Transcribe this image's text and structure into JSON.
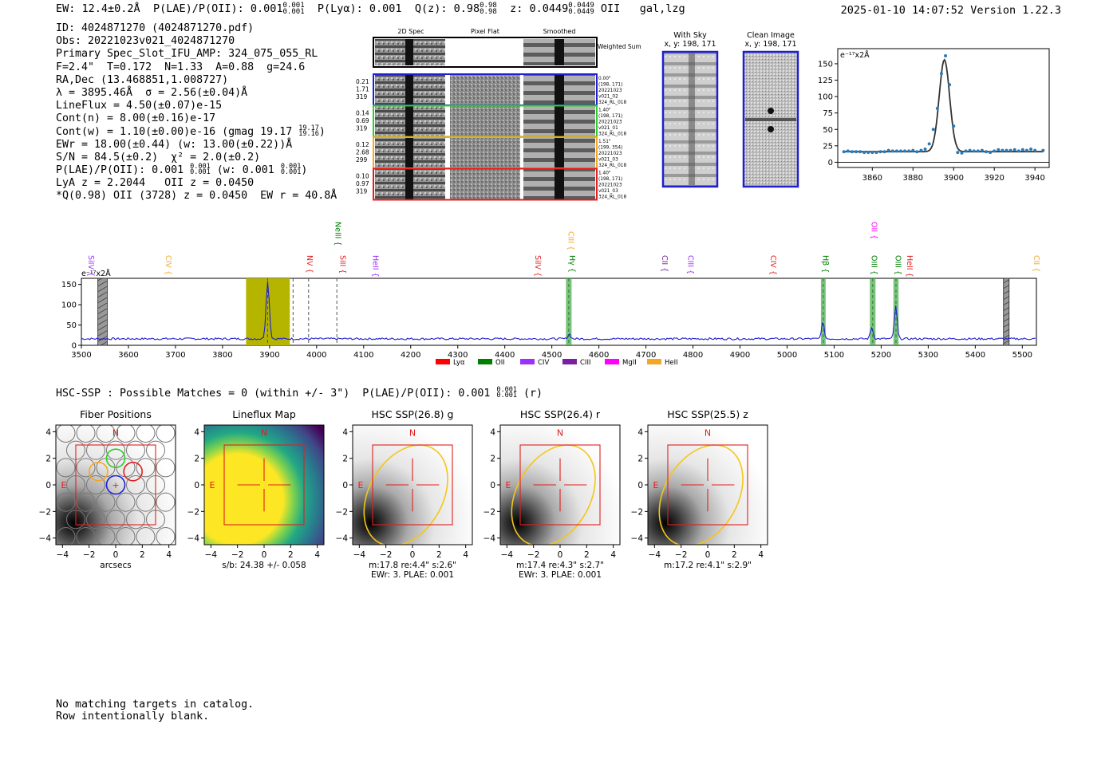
{
  "header": {
    "ew": "EW: 12.4±0.2Å",
    "plae_label": "P(LAE)/P(OII):",
    "plae_value": "0.001",
    "plae_hi": "0.001",
    "plae_lo": "0.001",
    "plya_label": "P(Lyα):",
    "plya_value": "0.001",
    "qz_label": "Q(z):",
    "qz_value": "0.98",
    "qz_hi": "0.98",
    "qz_lo": "0.98",
    "z_label": "z:",
    "z_value": "0.0449",
    "z_hi": "0.0449",
    "z_lo": "0.0449",
    "line_type": "OII",
    "classification": "gal,lzg",
    "datetime": "2025-01-10 14:07:52",
    "version": "Version 1.22.3"
  },
  "info": {
    "id": "ID: 4024871270 (4024871270.pdf)",
    "obs": "Obs: 20221023v021_4024871270",
    "primary": "Primary Spec_Slot_IFU_AMP: 324_075_055_RL",
    "fwhm": "F=2.4\"  T=0.172  N=1.33  A=0.88  g=24.6",
    "radec": "RA,Dec (13.468851,1.008727)",
    "lambda": "λ = 3895.46Å  σ = 2.56(±0.04)Å",
    "lineflux": "LineFlux = 4.50(±0.07)e-15",
    "contn": "Cont(n) = 8.00(±0.16)e-17",
    "contw": "Cont(w) = 1.10(±0.00)e-16 (gmag 19.17",
    "gmag_hi": "19.17",
    "gmag_lo": "19.16",
    "ewr": "EWr = 18.00(±0.44) (w: 13.00(±0.22))Å",
    "sn": "S/N = 84.5(±0.2)  χ² = 2.0(±0.2)",
    "plae": "P(LAE)/P(OII): 0.001",
    "plae_hi": "0.001",
    "plae_lo": "0.001",
    "plae_w": "(w: 0.001",
    "plae_w_hi": "0.001",
    "plae_w_lo": "0.001",
    "lya": "LyA z = 2.2044   OII z = 0.0450",
    "qline": "*Q(0.98) OII (3728) z = 0.0450  EW r = 40.8Å"
  },
  "cutouts": {
    "col_2d": "2D Spec",
    "col_flat": "Pixel Flat",
    "col_smooth": "Smoothed",
    "weighted": "Weighted Sum",
    "rows": [
      {
        "w1": "0.21",
        "w2": "1.71",
        "w3": "319",
        "meta": [
          "0.00\"",
          "(198, 171)",
          "20221023",
          "v021_02",
          "324_RL_018"
        ],
        "color": "#1f1fd0"
      },
      {
        "w1": "0.14",
        "w2": "0.69",
        "w3": "319",
        "meta": [
          "1.40\"",
          "(198, 171)",
          "20221023",
          "v021_01",
          "324_RL_018"
        ],
        "color": "#2ecc2e"
      },
      {
        "w1": "0.12",
        "w2": "2.68",
        "w3": "299",
        "meta": [
          "1.51\"",
          "(199, 354)",
          "20221023",
          "v021_03",
          "324_RL_018"
        ],
        "color": "#f5a623"
      },
      {
        "w1": "0.10",
        "w2": "0.97",
        "w3": "319",
        "meta": [
          "1.40\"",
          "(198, 171)",
          "20221023",
          "v021_03",
          "324_RL_018"
        ],
        "color": "#e02020"
      }
    ]
  },
  "sky": {
    "with_sky": "With Sky",
    "with_sky_xy": "x, y: 198, 171",
    "clean": "Clean Image",
    "clean_xy": "x, y: 198, 171"
  },
  "zoom_chart": {
    "type": "scatter",
    "units": "e⁻¹⁷x2Å",
    "xlim": [
      3843,
      3947
    ],
    "ylim": [
      -8,
      173
    ],
    "xticks": [
      3860,
      3880,
      3900,
      3920,
      3940
    ],
    "yticks": [
      0,
      25,
      50,
      75,
      100,
      125,
      150
    ],
    "x": [
      3846,
      3848,
      3850,
      3852,
      3854,
      3856,
      3858,
      3860,
      3862,
      3864,
      3866,
      3868,
      3870,
      3872,
      3874,
      3876,
      3878,
      3880,
      3882,
      3884,
      3886,
      3888,
      3890,
      3892,
      3894,
      3896,
      3898,
      3900,
      3902,
      3904,
      3906,
      3908,
      3910,
      3912,
      3914,
      3916,
      3918,
      3920,
      3922,
      3924,
      3926,
      3928,
      3930,
      3932,
      3934,
      3936,
      3938,
      3940,
      3944
    ],
    "y": [
      16,
      17,
      16,
      16,
      16,
      15,
      15,
      15,
      15,
      16,
      16,
      18,
      17,
      17,
      17,
      17,
      17,
      18,
      16,
      18,
      20,
      28,
      50,
      82,
      135,
      162,
      118,
      55,
      15,
      14,
      17,
      18,
      17,
      17,
      18,
      16,
      15,
      17,
      19,
      18,
      18,
      18,
      19,
      17,
      19,
      18,
      20,
      18,
      18
    ],
    "gauss": {
      "amp": 140,
      "mu": 3895.46,
      "sigma": 2.56,
      "cont": 16
    }
  },
  "full_spectrum": {
    "type": "line",
    "units": "e⁻¹⁷x2Å",
    "xlim": [
      3500,
      5530
    ],
    "ylim": [
      0,
      165
    ],
    "xticks": [
      3500,
      3600,
      3700,
      3800,
      3900,
      4000,
      4100,
      4200,
      4300,
      4400,
      4500,
      4600,
      4700,
      4800,
      4900,
      5000,
      5100,
      5200,
      5300,
      5400,
      5500
    ],
    "yticks": [
      0,
      50,
      100,
      150
    ],
    "peaks": [
      {
        "w": 3896,
        "amp": 140,
        "sigma": 3.5
      },
      {
        "w": 4537,
        "amp": 12,
        "sigma": 3
      },
      {
        "w": 5076,
        "amp": 40,
        "sigma": 3
      },
      {
        "w": 5180,
        "amp": 28,
        "sigma": 3
      },
      {
        "w": 5231,
        "amp": 80,
        "sigma": 3
      }
    ],
    "continuum": 16,
    "olive_band": [
      3850,
      3943
    ],
    "green_bands": [
      [
        4530,
        4542
      ],
      [
        5072,
        5082
      ],
      [
        5176,
        5188
      ],
      [
        5226,
        5237
      ]
    ],
    "hatched_bands": [
      [
        3535,
        3555
      ],
      [
        5460,
        5472
      ]
    ],
    "dashed_lines": [
      3896,
      3950,
      3983,
      4043
    ],
    "line_labels": [
      {
        "name": "SiIV",
        "w": 3515,
        "color": "#9b30ff",
        "level": 2
      },
      {
        "name": "CIV",
        "w": 3680,
        "color": "#f5a623",
        "level": 2
      },
      {
        "name": "NeIII",
        "w": 4040,
        "color": "#008000",
        "level": 0
      },
      {
        "name": "NV",
        "w": 3980,
        "color": "#e02020",
        "level": 2
      },
      {
        "name": "SiII",
        "w": 4050,
        "color": "#e02020",
        "level": 2
      },
      {
        "name": "HeII",
        "w": 4120,
        "color": "#9b30ff",
        "level": 2
      },
      {
        "name": "SiIV",
        "w": 4465,
        "color": "#e02020",
        "level": 2
      },
      {
        "name": "CIII",
        "w": 4535,
        "color": "#f5a623",
        "level": 1
      },
      {
        "name": "Hγ",
        "w": 4538,
        "color": "#008000",
        "level": 2
      },
      {
        "name": "CII",
        "w": 4735,
        "color": "#7b1fa2",
        "level": 2
      },
      {
        "name": "CIII",
        "w": 4790,
        "color": "#9b30ff",
        "level": 2
      },
      {
        "name": "CIV",
        "w": 4965,
        "color": "#e02020",
        "level": 2
      },
      {
        "name": "Hβ",
        "w": 5076,
        "color": "#008000",
        "level": 2
      },
      {
        "name": "OIII",
        "w": 5180,
        "color": "#008000",
        "level": 2
      },
      {
        "name": "OII",
        "w": 5180,
        "color": "#ff00ff",
        "level": 0
      },
      {
        "name": "OIII",
        "w": 5231,
        "color": "#008000",
        "level": 2
      },
      {
        "name": "HeII",
        "w": 5255,
        "color": "#e02020",
        "level": 2
      },
      {
        "name": "CII",
        "w": 5525,
        "color": "#f5a623",
        "level": 2
      }
    ],
    "legend": [
      {
        "name": "Lyα",
        "color": "#ff0000"
      },
      {
        "name": "OII",
        "color": "#008000"
      },
      {
        "name": "CIV",
        "color": "#9b30ff"
      },
      {
        "name": "CIII",
        "color": "#7b1fa2"
      },
      {
        "name": "MgII",
        "color": "#ff00ff"
      },
      {
        "name": "HeII",
        "color": "#f5a623"
      }
    ]
  },
  "hsc": {
    "line": "HSC-SSP : Possible Matches = 0 (within +/- 3\")  P(LAE)/P(OII): 0.001",
    "hi": "0.001",
    "lo": "0.001",
    "band": "(r)"
  },
  "panels": [
    {
      "title": "Fiber Positions",
      "xlabel": "arcsecs",
      "xlabel2": "",
      "kind": "fibers"
    },
    {
      "title": "Lineflux Map",
      "xlabel": "s/b: 24.38 +/- 0.058",
      "xlabel2": "",
      "kind": "flux"
    },
    {
      "title": "HSC SSP(26.8) g",
      "xlabel": "m:17.8  re:4.4\"  s:2.6\"",
      "xlabel2": "EWr: 3. PLAE: 0.001",
      "kind": "hsc"
    },
    {
      "title": "HSC SSP(26.4) r",
      "xlabel": "m:17.4  re:4.3\"  s:2.7\"",
      "xlabel2": "EWr: 3. PLAE: 0.001",
      "kind": "hsc"
    },
    {
      "title": "HSC SSP(25.5) z",
      "xlabel": "m:17.2  re:4.1\"  s:2.9\"",
      "xlabel2": "",
      "kind": "hsc"
    }
  ],
  "panel_axes": {
    "ticks": [
      -4,
      -2,
      0,
      2,
      4
    ],
    "north": "N",
    "east": "E"
  },
  "footer": {
    "line1": "No matching targets in catalog.",
    "line2": "Row intentionally blank."
  }
}
